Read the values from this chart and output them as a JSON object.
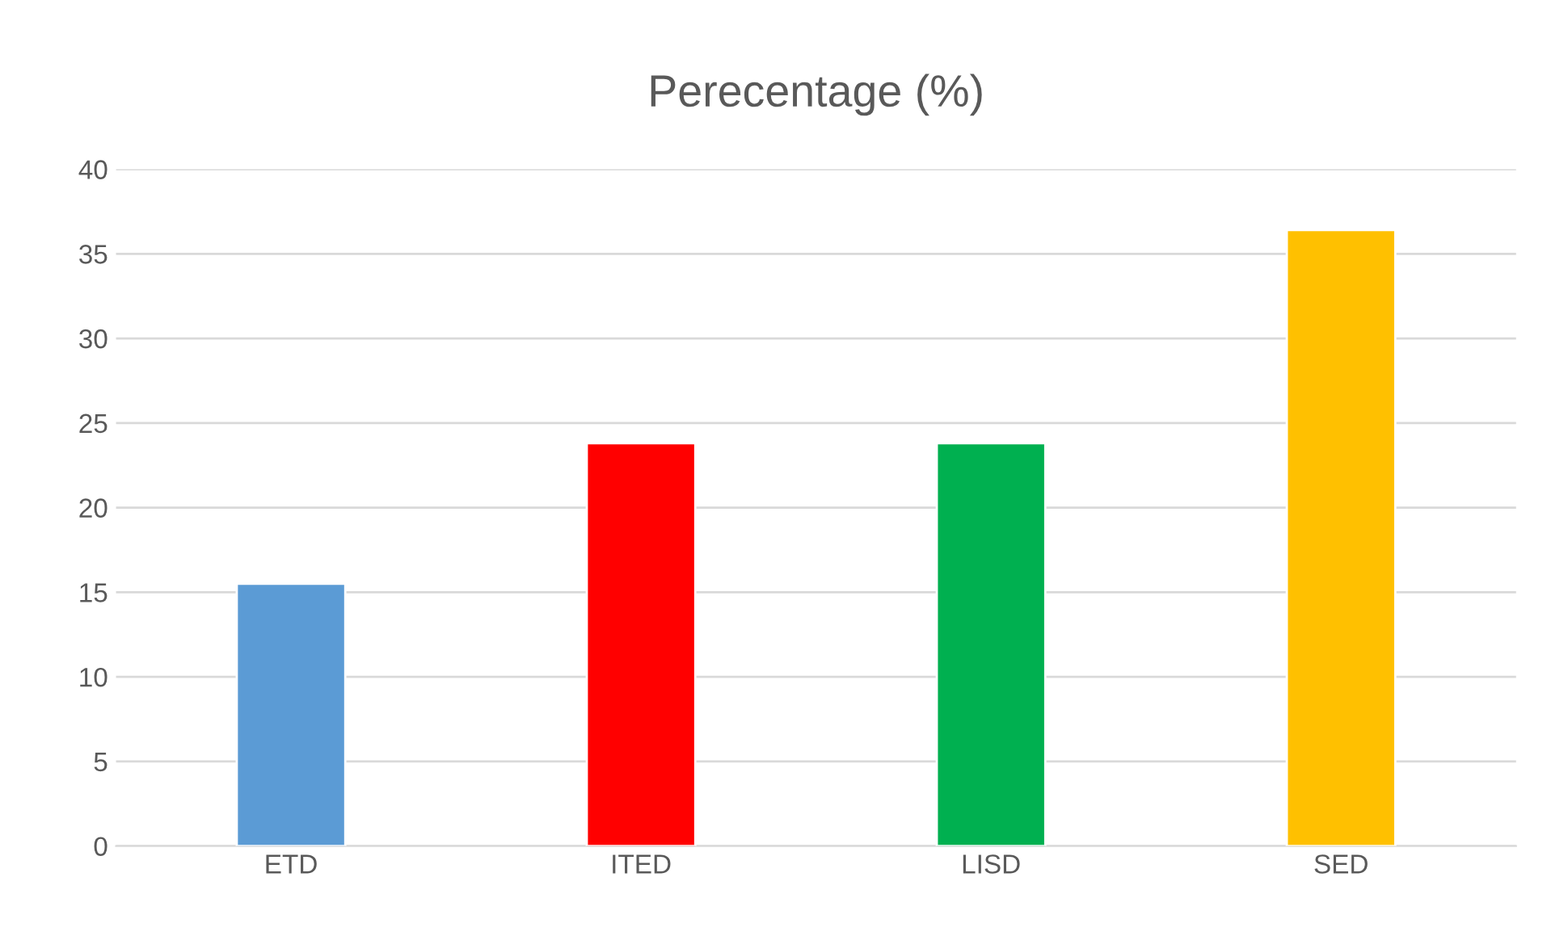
{
  "chart_data": {
    "type": "bar",
    "title": "Perecentage (%)",
    "categories": [
      "ETD",
      "ITED",
      "LISD",
      "SED"
    ],
    "values": [
      15.5,
      23.8,
      23.8,
      36.4
    ],
    "colors": [
      "#5b9bd5",
      "#ff0000",
      "#00b050",
      "#ffc000"
    ],
    "ylim": [
      0,
      40
    ],
    "yticks": [
      0,
      5,
      10,
      15,
      20,
      25,
      30,
      35,
      40
    ],
    "grid": "y",
    "legend": false
  }
}
